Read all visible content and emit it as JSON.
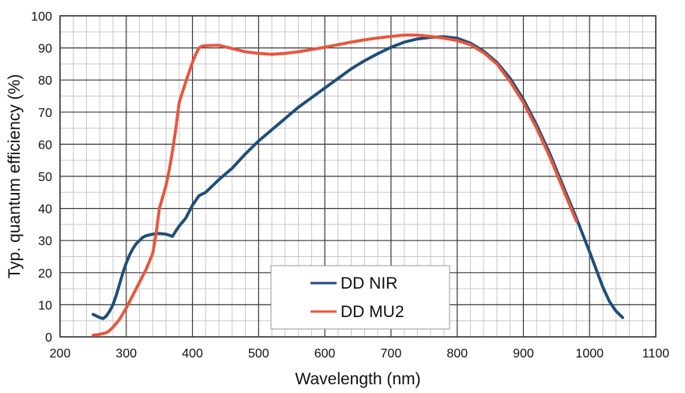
{
  "chart_data": {
    "type": "line",
    "title": "",
    "xlabel": "Wavelength (nm)",
    "ylabel": "Typ. quantum efficiency (%)",
    "xlim": [
      200,
      1100
    ],
    "ylim": [
      0,
      100
    ],
    "x_ticks": [
      200,
      300,
      400,
      500,
      600,
      700,
      800,
      900,
      1000,
      1100
    ],
    "y_ticks": [
      0,
      10,
      20,
      30,
      40,
      50,
      60,
      70,
      80,
      90,
      100
    ],
    "x_minor_step": 20,
    "y_minor_step": 5,
    "grid": true,
    "legend_position": "bottom-center",
    "series": [
      {
        "name": "DD NIR",
        "color": "#1f4e79",
        "points": [
          [
            250,
            7
          ],
          [
            255,
            6.5
          ],
          [
            260,
            6
          ],
          [
            265,
            5.7
          ],
          [
            270,
            6.5
          ],
          [
            275,
            8
          ],
          [
            280,
            10
          ],
          [
            285,
            13
          ],
          [
            290,
            16.5
          ],
          [
            295,
            20
          ],
          [
            300,
            23
          ],
          [
            305,
            25.5
          ],
          [
            310,
            27.5
          ],
          [
            315,
            29
          ],
          [
            320,
            30
          ],
          [
            325,
            31
          ],
          [
            330,
            31.5
          ],
          [
            340,
            32
          ],
          [
            350,
            32.2
          ],
          [
            360,
            32
          ],
          [
            370,
            31.3
          ],
          [
            375,
            33
          ],
          [
            380,
            34.5
          ],
          [
            390,
            37
          ],
          [
            400,
            41
          ],
          [
            410,
            44
          ],
          [
            420,
            45
          ],
          [
            440,
            49
          ],
          [
            460,
            52.5
          ],
          [
            480,
            57
          ],
          [
            500,
            61
          ],
          [
            520,
            64.5
          ],
          [
            540,
            68
          ],
          [
            560,
            71.5
          ],
          [
            580,
            74.5
          ],
          [
            600,
            77.5
          ],
          [
            620,
            80.5
          ],
          [
            640,
            83.5
          ],
          [
            660,
            86
          ],
          [
            680,
            88.2
          ],
          [
            700,
            90.2
          ],
          [
            720,
            91.8
          ],
          [
            740,
            92.8
          ],
          [
            760,
            93.3
          ],
          [
            780,
            93.5
          ],
          [
            800,
            93
          ],
          [
            820,
            91.5
          ],
          [
            840,
            89
          ],
          [
            860,
            85.5
          ],
          [
            880,
            80.5
          ],
          [
            900,
            74
          ],
          [
            920,
            66
          ],
          [
            940,
            57
          ],
          [
            960,
            47
          ],
          [
            980,
            37
          ],
          [
            1000,
            26.5
          ],
          [
            1010,
            21
          ],
          [
            1020,
            15.5
          ],
          [
            1030,
            11
          ],
          [
            1040,
            8
          ],
          [
            1050,
            6
          ]
        ]
      },
      {
        "name": "DD MU2",
        "color": "#e8553e",
        "points": [
          [
            250,
            0.5
          ],
          [
            260,
            0.8
          ],
          [
            270,
            1.3
          ],
          [
            275,
            2
          ],
          [
            280,
            3
          ],
          [
            290,
            5.5
          ],
          [
            300,
            9
          ],
          [
            310,
            13
          ],
          [
            320,
            17
          ],
          [
            330,
            21
          ],
          [
            340,
            26
          ],
          [
            345,
            32
          ],
          [
            350,
            40
          ],
          [
            360,
            47
          ],
          [
            365,
            52
          ],
          [
            370,
            58
          ],
          [
            375,
            65
          ],
          [
            380,
            73
          ],
          [
            390,
            79.5
          ],
          [
            400,
            85.5
          ],
          [
            405,
            88
          ],
          [
            410,
            90
          ],
          [
            415,
            90.6
          ],
          [
            430,
            90.8
          ],
          [
            440,
            90.8
          ],
          [
            460,
            89.8
          ],
          [
            480,
            88.8
          ],
          [
            500,
            88.3
          ],
          [
            520,
            88
          ],
          [
            540,
            88.3
          ],
          [
            560,
            88.8
          ],
          [
            580,
            89.5
          ],
          [
            600,
            90.2
          ],
          [
            620,
            91
          ],
          [
            640,
            91.8
          ],
          [
            660,
            92.5
          ],
          [
            680,
            93.1
          ],
          [
            700,
            93.6
          ],
          [
            720,
            94
          ],
          [
            740,
            94
          ],
          [
            760,
            93.6
          ],
          [
            780,
            93
          ],
          [
            800,
            92.3
          ],
          [
            820,
            91
          ],
          [
            840,
            88.5
          ],
          [
            860,
            85
          ],
          [
            880,
            79.5
          ],
          [
            900,
            73
          ],
          [
            920,
            65
          ],
          [
            940,
            56
          ],
          [
            960,
            46
          ],
          [
            970,
            41
          ],
          [
            980,
            36
          ]
        ]
      }
    ]
  }
}
